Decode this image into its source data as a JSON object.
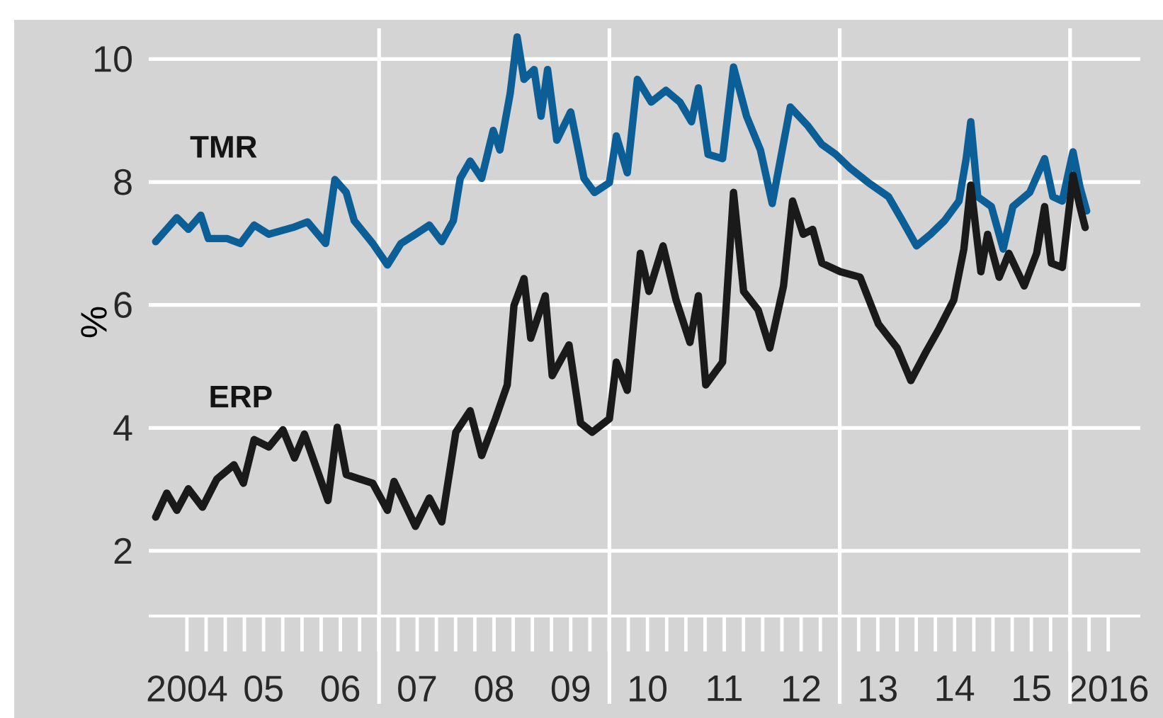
{
  "chart_data": {
    "type": "line",
    "ylabel": "%",
    "xlim": [
      "2004-01-01",
      "2016-12-01"
    ],
    "ylim": [
      0.94,
      10.5
    ],
    "grid": "y",
    "yticks": [
      2,
      4,
      6,
      8,
      10
    ],
    "xticks": [
      {
        "value": "2004-07-01",
        "label": "2004"
      },
      {
        "value": "2005-07-01",
        "label": "05"
      },
      {
        "value": "2006-07-01",
        "label": "06"
      },
      {
        "value": "2007-07-01",
        "label": "07"
      },
      {
        "value": "2008-07-01",
        "label": "08"
      },
      {
        "value": "2009-07-01",
        "label": "09"
      },
      {
        "value": "2010-07-01",
        "label": "10"
      },
      {
        "value": "2011-07-01",
        "label": "11"
      },
      {
        "value": "2012-07-01",
        "label": "12"
      },
      {
        "value": "2013-07-01",
        "label": "13"
      },
      {
        "value": "2014-07-01",
        "label": "14"
      },
      {
        "value": "2015-07-01",
        "label": "15"
      },
      {
        "value": "2016-07-01",
        "label": "2016"
      }
    ],
    "ref_lines": [
      {
        "axis": "x",
        "value": "2007-01-01",
        "label": null,
        "color": "#ffffff"
      },
      {
        "axis": "x",
        "value": "2010-01-01",
        "label": null,
        "color": "#ffffff"
      },
      {
        "axis": "x",
        "value": "2013-01-01",
        "label": null,
        "color": "#ffffff"
      },
      {
        "axis": "x",
        "value": "2016-01-01",
        "label": null,
        "color": "#ffffff"
      }
    ],
    "series": [
      {
        "name": "TMR",
        "color": "#0b5e96",
        "x": [
          "2004-02-03",
          "2004-03-05",
          "2004-05-14",
          "2004-07-08",
          "2004-09-05",
          "2004-10-11",
          "2005-01-08",
          "2005-03-13",
          "2005-05-17",
          "2005-07-26",
          "2005-11-17",
          "2006-01-26",
          "2006-04-22",
          "2006-06-05",
          "2006-07-29",
          "2006-09-05",
          "2006-12-02",
          "2007-02-10",
          "2007-04-15",
          "2007-06-23",
          "2007-08-28",
          "2007-10-26",
          "2007-12-20",
          "2008-01-22",
          "2008-03-09",
          "2008-05-03",
          "2008-06-27",
          "2008-07-29",
          "2008-09-16",
          "2008-10-19",
          "2008-11-21",
          "2009-01-08",
          "2009-02-10",
          "2009-03-13",
          "2009-04-26",
          "2009-07-01",
          "2009-09-02",
          "2009-10-22",
          "2010-01-01",
          "2010-02-03",
          "2010-03-27",
          "2010-05-14",
          "2010-07-19",
          "2010-09-27",
          "2010-12-02",
          "2011-01-26",
          "2011-02-28",
          "2011-04-15",
          "2011-06-23",
          "2011-08-14",
          "2011-10-15",
          "2011-12-20",
          "2012-02-14",
          "2012-05-10",
          "2012-08-03",
          "2012-10-08",
          "2012-12-13",
          "2013-02-21",
          "2013-05-17",
          "2013-08-21",
          "2013-10-26",
          "2014-01-01",
          "2014-03-09",
          "2014-05-14",
          "2014-07-22",
          "2014-08-25",
          "2014-09-16",
          "2014-10-19",
          "2014-12-23",
          "2015-02-17",
          "2015-04-04",
          "2015-06-23",
          "2015-09-02",
          "2015-10-11",
          "2015-11-25",
          "2016-01-15",
          "2016-02-17",
          "2016-03-20"
        ],
        "values": [
          7.03,
          7.15,
          7.42,
          7.23,
          7.46,
          7.08,
          7.08,
          7.0,
          7.3,
          7.15,
          7.26,
          7.35,
          7.0,
          8.04,
          7.83,
          7.37,
          7.0,
          6.65,
          7.0,
          7.15,
          7.3,
          7.03,
          7.37,
          8.06,
          8.34,
          8.06,
          8.84,
          8.52,
          9.44,
          10.36,
          9.67,
          9.83,
          9.07,
          9.83,
          8.68,
          9.14,
          8.06,
          7.83,
          7.99,
          8.75,
          8.15,
          9.67,
          9.3,
          9.49,
          9.3,
          8.98,
          9.53,
          8.45,
          8.38,
          9.87,
          9.07,
          8.52,
          7.65,
          9.22,
          8.91,
          8.61,
          8.45,
          8.22,
          7.99,
          7.76,
          7.37,
          6.96,
          7.15,
          7.37,
          7.69,
          8.38,
          8.98,
          7.76,
          7.6,
          6.91,
          7.6,
          7.83,
          8.38,
          7.76,
          7.69,
          8.49,
          7.92,
          7.53
        ]
      },
      {
        "name": "ERP",
        "color": "#1a1a1a",
        "x": [
          "2004-02-03",
          "2004-03-27",
          "2004-05-14",
          "2004-07-08",
          "2004-09-13",
          "2004-11-21",
          "2005-02-10",
          "2005-03-27",
          "2005-05-17",
          "2005-07-26",
          "2005-10-01",
          "2005-11-25",
          "2006-01-11",
          "2006-05-03",
          "2006-06-16",
          "2006-07-29",
          "2006-12-02",
          "2007-02-10",
          "2007-03-13",
          "2007-06-23",
          "2007-08-28",
          "2007-10-26",
          "2008-01-01",
          "2008-03-09",
          "2008-05-03",
          "2008-07-08",
          "2008-09-02",
          "2008-10-04",
          "2008-11-21",
          "2008-12-23",
          "2009-03-02",
          "2009-04-04",
          "2009-06-23",
          "2009-08-17",
          "2009-10-11",
          "2010-01-01",
          "2010-02-03",
          "2010-03-27",
          "2010-05-28",
          "2010-07-08",
          "2010-09-13",
          "2010-11-14",
          "2011-01-19",
          "2011-02-28",
          "2011-04-04",
          "2011-06-23",
          "2011-08-14",
          "2011-10-01",
          "2011-12-09",
          "2012-02-03",
          "2012-04-08",
          "2012-05-21",
          "2012-07-11",
          "2012-08-25",
          "2012-10-08",
          "2013-01-04",
          "2013-04-08",
          "2013-07-04",
          "2013-10-01",
          "2013-12-05",
          "2014-02-14",
          "2014-04-19",
          "2014-06-27",
          "2014-08-14",
          "2014-09-16",
          "2014-11-03",
          "2014-12-05",
          "2015-01-29",
          "2015-03-16",
          "2015-05-28",
          "2015-07-26",
          "2015-09-02",
          "2015-10-04",
          "2015-11-25",
          "2016-01-15",
          "2016-02-17",
          "2016-03-13"
        ],
        "values": [
          2.55,
          2.94,
          2.66,
          3.01,
          2.71,
          3.17,
          3.4,
          3.1,
          3.81,
          3.69,
          3.97,
          3.51,
          3.9,
          2.82,
          4.01,
          3.24,
          3.1,
          2.66,
          3.13,
          2.4,
          2.86,
          2.47,
          3.93,
          4.28,
          3.55,
          4.15,
          4.7,
          5.99,
          6.43,
          5.46,
          6.15,
          4.85,
          5.35,
          4.08,
          3.93,
          4.15,
          5.07,
          4.61,
          6.84,
          6.22,
          6.96,
          6.08,
          5.39,
          6.15,
          4.7,
          5.07,
          7.83,
          6.22,
          5.92,
          5.3,
          6.31,
          7.69,
          7.15,
          7.23,
          6.68,
          6.54,
          6.45,
          5.69,
          5.3,
          4.77,
          5.23,
          5.62,
          6.08,
          6.91,
          7.95,
          6.54,
          7.15,
          6.45,
          6.84,
          6.31,
          6.84,
          7.6,
          6.68,
          6.61,
          8.11,
          7.6,
          7.26
        ]
      }
    ]
  }
}
